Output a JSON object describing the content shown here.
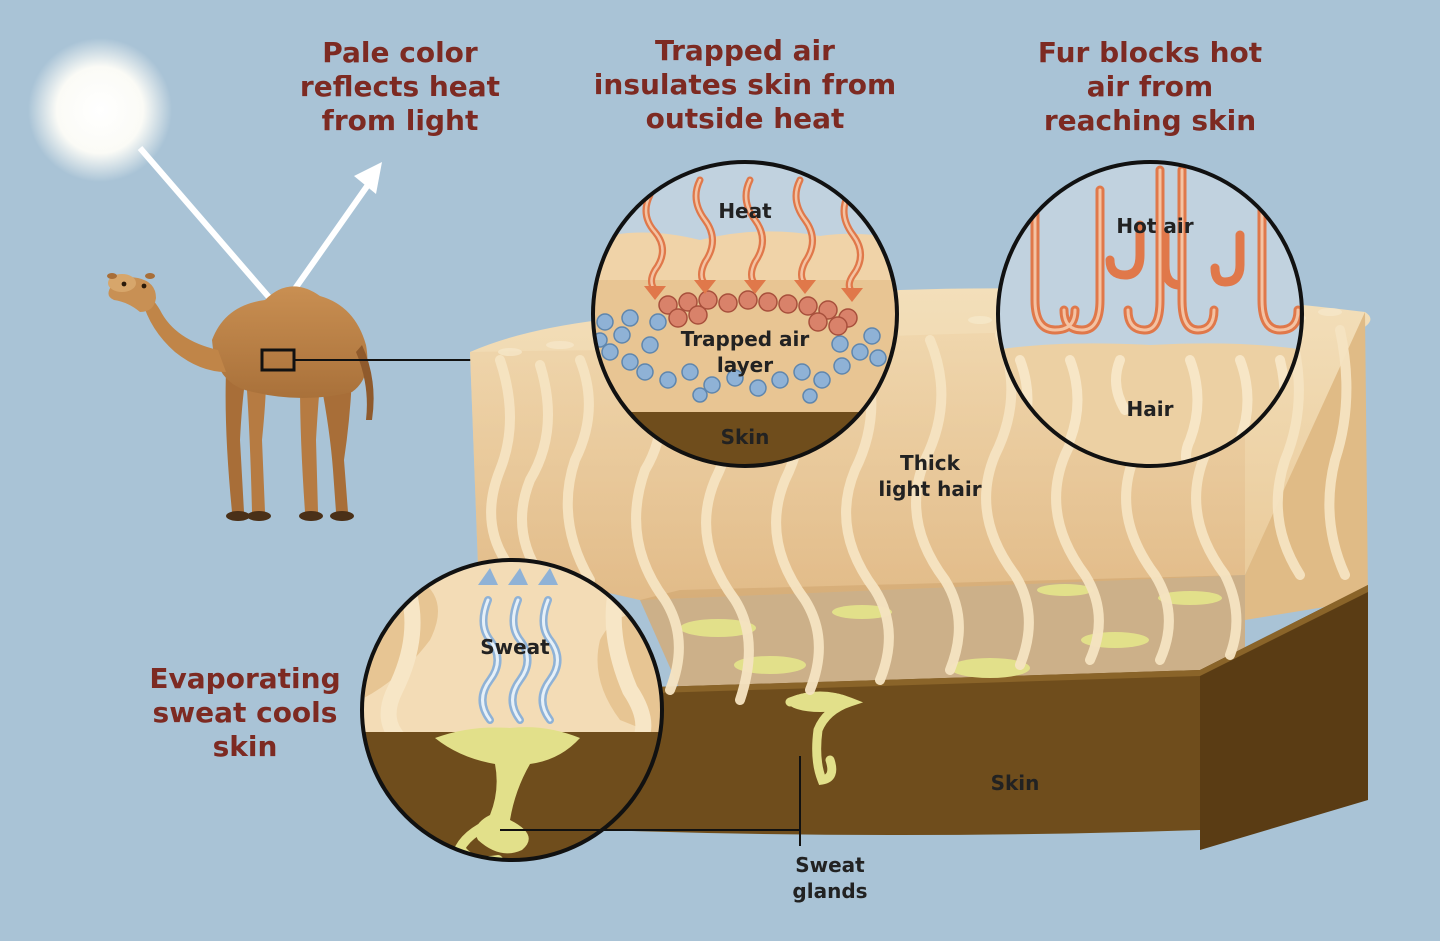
{
  "titles": {
    "pale_color": "Pale color\nreflects heat\nfrom light",
    "trapped_air": "Trapped air\ninsulates skin from\noutside heat",
    "fur_blocks": "Fur blocks hot\nair from\nreaching skin",
    "evaporating": "Evaporating\nsweat cools\nskin"
  },
  "labels": {
    "heat": "Heat",
    "trapped_air_layer": "Trapped air\nlayer",
    "skin_inset": "Skin",
    "hot_air": "Hot air",
    "hair": "Hair",
    "thick_light_hair": "Thick\nlight hair",
    "sweat": "Sweat",
    "skin_block": "Skin",
    "sweat_glands": "Sweat\nglands"
  },
  "colors": {
    "background": "#a9c3d6",
    "title_text": "#7d2a22",
    "fur_light": "#f2dcb4",
    "fur_mid": "#e8c596",
    "skin_brown": "#6d4c1c",
    "skin_dark": "#5a3d16",
    "sweat_yellow": "#e2e08a",
    "heat_orange": "#e0784a",
    "air_blue": "#8fb2d6",
    "camel_tan": "#c58b4f"
  }
}
